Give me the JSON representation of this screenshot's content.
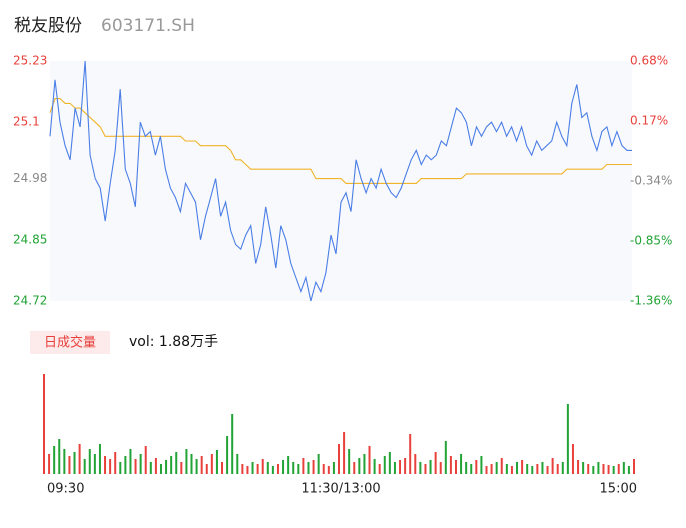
{
  "header": {
    "name": "税友股份",
    "code": "603171.SH"
  },
  "chart_data": {
    "type": "line",
    "price": [
      25.07,
      25.19,
      25.1,
      25.05,
      25.02,
      25.13,
      25.09,
      25.23,
      25.03,
      24.98,
      24.96,
      24.89,
      24.97,
      25.04,
      25.17,
      25.0,
      24.97,
      24.92,
      25.1,
      25.07,
      25.08,
      25.03,
      25.07,
      25.0,
      24.96,
      24.94,
      24.91,
      24.97,
      24.95,
      24.93,
      24.85,
      24.9,
      24.94,
      24.98,
      24.9,
      24.93,
      24.87,
      24.84,
      24.83,
      24.86,
      24.88,
      24.8,
      24.84,
      24.92,
      24.86,
      24.79,
      24.88,
      24.85,
      24.8,
      24.77,
      24.74,
      24.77,
      24.72,
      24.76,
      24.74,
      24.78,
      24.86,
      24.82,
      24.93,
      24.95,
      24.91,
      25.02,
      24.98,
      24.95,
      24.98,
      24.96,
      25.0,
      24.97,
      24.95,
      24.94,
      24.96,
      24.99,
      25.02,
      25.04,
      25.01,
      25.03,
      25.02,
      25.03,
      25.06,
      25.05,
      25.09,
      25.13,
      25.12,
      25.1,
      25.05,
      25.09,
      25.07,
      25.09,
      25.1,
      25.08,
      25.1,
      25.07,
      25.09,
      25.06,
      25.09,
      25.05,
      25.03,
      25.06,
      25.04,
      25.05,
      25.06,
      25.1,
      25.07,
      25.05,
      25.14,
      25.18,
      25.11,
      25.12,
      25.07,
      25.04,
      25.08,
      25.09,
      25.05,
      25.08,
      25.05,
      25.04,
      25.04
    ],
    "average": [
      25.12,
      25.15,
      25.15,
      25.14,
      25.14,
      25.13,
      25.13,
      25.12,
      25.11,
      25.1,
      25.09,
      25.07,
      25.07,
      25.07,
      25.07,
      25.07,
      25.07,
      25.07,
      25.07,
      25.07,
      25.07,
      25.07,
      25.07,
      25.07,
      25.07,
      25.07,
      25.07,
      25.06,
      25.06,
      25.06,
      25.05,
      25.05,
      25.05,
      25.05,
      25.05,
      25.05,
      25.04,
      25.02,
      25.02,
      25.01,
      25.0,
      25.0,
      25.0,
      25.0,
      25.0,
      25.0,
      25.0,
      25.0,
      25.0,
      25.0,
      25.0,
      25.0,
      25.0,
      24.98,
      24.98,
      24.98,
      24.98,
      24.98,
      24.98,
      24.97,
      24.97,
      24.97,
      24.97,
      24.97,
      24.97,
      24.97,
      24.97,
      24.97,
      24.97,
      24.97,
      24.97,
      24.97,
      24.97,
      24.97,
      24.98,
      24.98,
      24.98,
      24.98,
      24.98,
      24.98,
      24.98,
      24.98,
      24.98,
      24.99,
      24.99,
      24.99,
      24.99,
      24.99,
      24.99,
      24.99,
      24.99,
      24.99,
      24.99,
      24.99,
      24.99,
      24.99,
      24.99,
      24.99,
      24.99,
      24.99,
      24.99,
      24.99,
      24.99,
      25.0,
      25.0,
      25.0,
      25.0,
      25.0,
      25.0,
      25.0,
      25.0,
      25.01,
      25.01,
      25.01,
      25.01,
      25.01,
      25.01
    ],
    "price_color": "#4a7ee6",
    "average_color": "#f0b429",
    "ylim": [
      24.72,
      25.23
    ],
    "yticks": [
      24.72,
      24.85,
      24.98,
      25.1,
      25.23
    ],
    "y2lim": [
      -1.36,
      0.68
    ],
    "y2ticks": [
      {
        "value": -1.36,
        "label": "-1.36%"
      },
      {
        "value": -0.85,
        "label": "-0.85%"
      },
      {
        "value": -0.34,
        "label": "-0.34%"
      },
      {
        "value": 0.17,
        "label": "0.17%"
      },
      {
        "value": 0.68,
        "label": "0.68%"
      }
    ],
    "xticks": [
      {
        "value": 0,
        "label": "09:30"
      },
      {
        "value": 58,
        "label": "11:30/13:00"
      },
      {
        "value": 116,
        "label": "15:00"
      }
    ],
    "volume_title": "日成交量",
    "volume_label": "vol: 1.88万手",
    "volume": [
      100,
      20,
      28,
      35,
      25,
      18,
      22,
      30,
      15,
      25,
      20,
      30,
      18,
      15,
      22,
      12,
      18,
      25,
      15,
      20,
      28,
      12,
      16,
      10,
      14,
      18,
      22,
      12,
      25,
      20,
      15,
      18,
      10,
      20,
      24,
      12,
      38,
      60,
      20,
      10,
      8,
      12,
      10,
      15,
      12,
      8,
      10,
      14,
      18,
      12,
      10,
      16,
      12,
      14,
      20,
      10,
      8,
      12,
      30,
      42,
      25,
      12,
      16,
      20,
      28,
      15,
      10,
      18,
      22,
      12,
      14,
      16,
      40,
      20,
      12,
      10,
      14,
      22,
      12,
      33,
      18,
      14,
      20,
      12,
      10,
      14,
      18,
      8,
      10,
      12,
      16,
      10,
      8,
      12,
      14,
      10,
      8,
      10,
      12,
      8,
      16,
      10,
      12,
      70,
      30,
      14,
      12,
      10,
      8,
      12,
      10,
      9,
      8,
      10,
      12,
      8,
      15
    ],
    "volume_ylim": [
      0,
      105
    ],
    "up_color": "#e8413c",
    "down_color": "#21a336"
  }
}
